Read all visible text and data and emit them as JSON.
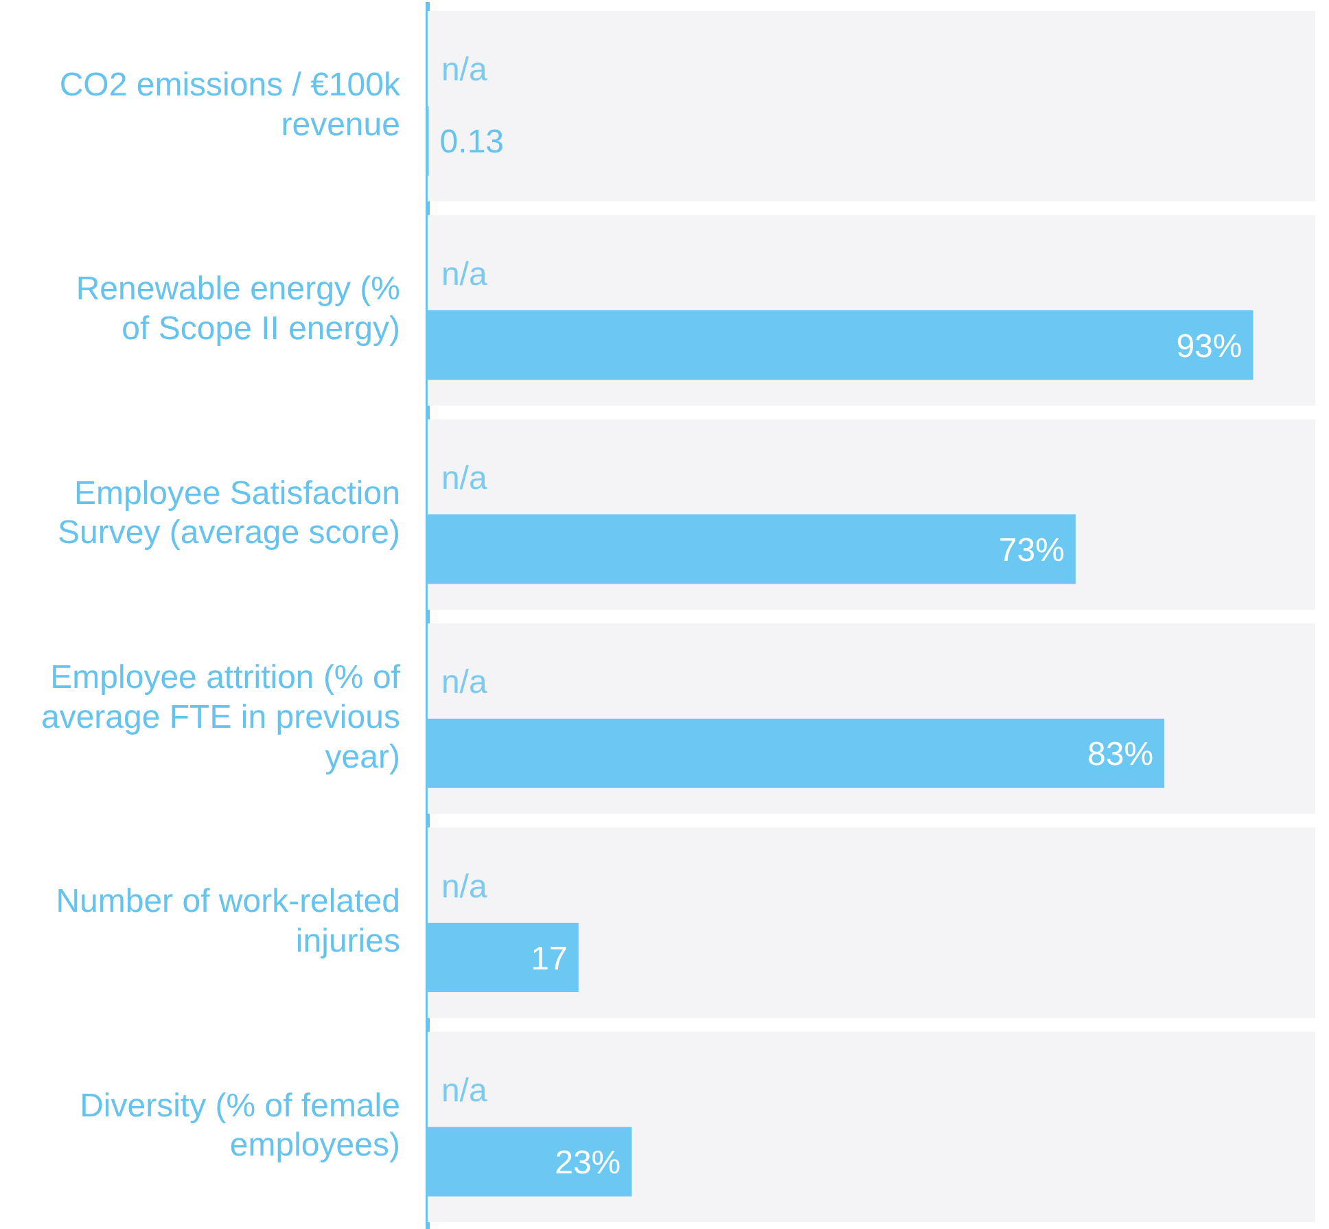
{
  "chart_data": {
    "type": "bar",
    "orientation": "horizontal",
    "categories": [
      "CO2 emissions / €100k revenue",
      "Renewable energy (% of Scope II energy)",
      "Employee Satisfaction Survey (average score)",
      "Employee attrition (% of average FTE in previous year)",
      "Number of work-related injuries",
      "Diversity (% of female employees)"
    ],
    "series": [
      {
        "color": "#7ccbef",
        "values": [
          null,
          null,
          null,
          null,
          null,
          null
        ],
        "value_labels": [
          "n/a",
          "n/a",
          "n/a",
          "n/a",
          "n/a",
          "n/a"
        ]
      },
      {
        "color": "#6bc8f2",
        "values": [
          0.13,
          93,
          73,
          83,
          17,
          23
        ],
        "value_labels": [
          "0.13",
          "93%",
          "73%",
          "83%",
          "17",
          "23%"
        ]
      }
    ],
    "bands": [
      {
        "axis": "y",
        "from": "CO2 emissions / €100k revenue",
        "to": "CO2 emissions / €100k revenue",
        "color": "#f4f4f6"
      },
      {
        "axis": "y",
        "from": "Renewable energy (% of Scope II energy)",
        "to": "Renewable energy (% of Scope II energy)",
        "color": "#f4f4f6"
      },
      {
        "axis": "y",
        "from": "Employee Satisfaction Survey (average score)",
        "to": "Employee Satisfaction Survey (average score)",
        "color": "#f4f4f6"
      },
      {
        "axis": "y",
        "from": "Employee attrition (% of average FTE in previous year)",
        "to": "Employee attrition (% of average FTE in previous year)",
        "color": "#f4f4f6"
      },
      {
        "axis": "y",
        "from": "Number of work-related injuries",
        "to": "Number of work-related injuries",
        "color": "#f4f4f6"
      },
      {
        "axis": "y",
        "from": "Diversity (% of female employees)",
        "to": "Diversity (% of female employees)",
        "color": "#f4f4f6"
      }
    ],
    "xlim": [
      0,
      100
    ],
    "tick_labels": "y",
    "legend": false,
    "grid": false
  }
}
